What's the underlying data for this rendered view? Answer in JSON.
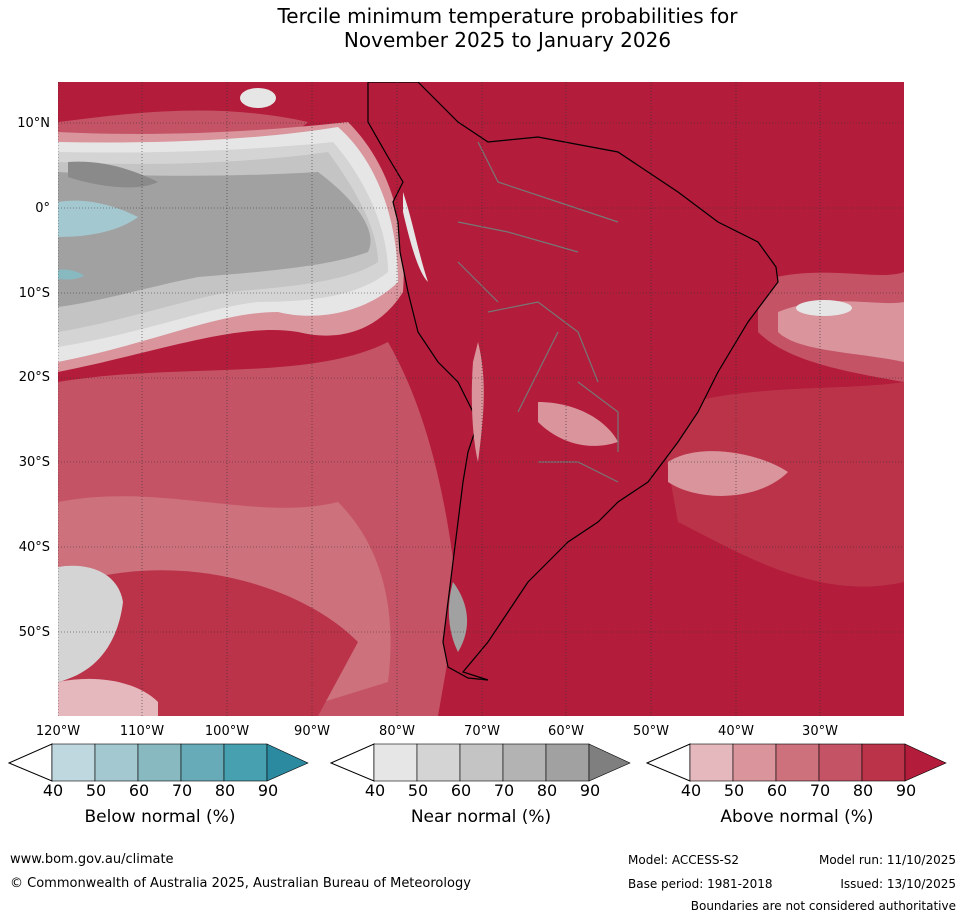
{
  "title": {
    "line1": "Tercile minimum temperature probabilities for",
    "line2": "November 2025 to January 2026"
  },
  "map": {
    "lat_labels": [
      "10°N",
      "0°",
      "10°S",
      "20°S",
      "30°S",
      "40°S",
      "50°S"
    ],
    "lon_labels": [
      "120°W",
      "110°W",
      "100°W",
      "90°W",
      "80°W",
      "70°W",
      "60°W",
      "50°W",
      "40°W",
      "30°W"
    ]
  },
  "colorbars": [
    {
      "label": "Below normal (%)",
      "ticks": [
        "40",
        "50",
        "60",
        "70",
        "80",
        "90"
      ],
      "colors": [
        "#bfd7de",
        "#a4c8cf",
        "#88b9c1",
        "#68abb8",
        "#47a0b0",
        "#2b8aa0"
      ]
    },
    {
      "label": "Near normal (%)",
      "ticks": [
        "40",
        "50",
        "60",
        "70",
        "80",
        "90"
      ],
      "colors": [
        "#e6e6e6",
        "#d4d4d4",
        "#c4c4c4",
        "#b3b3b3",
        "#a1a1a1",
        "#7f7f7f"
      ]
    },
    {
      "label": "Above normal (%)",
      "ticks": [
        "40",
        "50",
        "60",
        "70",
        "80",
        "90"
      ],
      "colors": [
        "#e4b8bd",
        "#d9949c",
        "#cd717d",
        "#c45366",
        "#bb3349",
        "#b31c3a"
      ]
    }
  ],
  "footer": {
    "website": "www.bom.gov.au/climate",
    "copyright": "© Commonwealth of Australia 2025, Australian Bureau of Meteorology",
    "model": "Model: ACCESS-S2",
    "model_run": "Model run: 11/10/2025",
    "base_period": "Base period: 1981-2018",
    "issued": "Issued: 13/10/2025",
    "disclaimer": "Boundaries are not considered authoritative"
  }
}
